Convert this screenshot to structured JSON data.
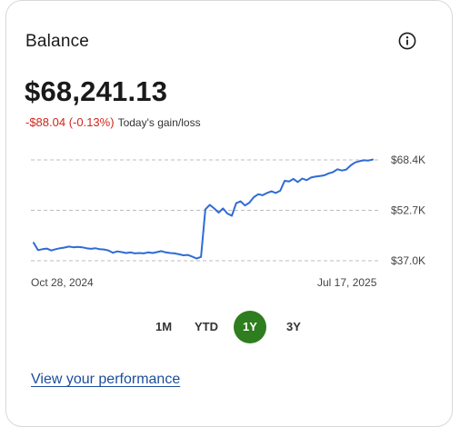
{
  "card": {
    "title": "Balance",
    "info_icon": "info-circle-icon",
    "balance": "$68,241.13",
    "gain_value": "-$88.04 (-0.13%)",
    "gain_label": "Today's gain/loss",
    "link": "View your performance"
  },
  "colors": {
    "line": "#2f6bd6",
    "negative": "#d0271d",
    "active_period": "#2e7d1e",
    "link": "#1b4d9c"
  },
  "periods": [
    {
      "label": "1M",
      "active": false
    },
    {
      "label": "YTD",
      "active": false
    },
    {
      "label": "1Y",
      "active": true
    },
    {
      "label": "3Y",
      "active": false
    }
  ],
  "chart_data": {
    "type": "line",
    "x_start_label": "Oct 28, 2024",
    "x_end_label": "Jul 17, 2025",
    "y_tick_labels": [
      "$68.4K",
      "$52.7K",
      "$37.0K"
    ],
    "y_ticks": [
      68400,
      52700,
      37000
    ],
    "ylim": [
      37000,
      68400
    ],
    "grid": "dashed horizontal",
    "series": [
      {
        "values": [
          42600,
          40300,
          40600,
          40800,
          40200,
          40600,
          40900,
          41100,
          41400,
          41200,
          41300,
          41200,
          40900,
          40700,
          40900,
          40600,
          40500,
          40200,
          39500,
          39900,
          39700,
          39400,
          39600,
          39300,
          39400,
          39300,
          39600,
          39400,
          39700,
          40000,
          39600,
          39400,
          39300,
          39000,
          38700,
          38800,
          38300,
          37700,
          38200,
          53000,
          54400,
          53300,
          52000,
          53300,
          51700,
          51000,
          54900,
          55500,
          54200,
          55100,
          56800,
          57700,
          57400,
          58100,
          58600,
          58100,
          58800,
          61900,
          61700,
          62500,
          61500,
          62600,
          62100,
          62900,
          63200,
          63400,
          63600,
          64200,
          64600,
          65500,
          65100,
          65400,
          66700,
          67600,
          68000,
          68300,
          68200,
          68500
        ]
      }
    ]
  }
}
